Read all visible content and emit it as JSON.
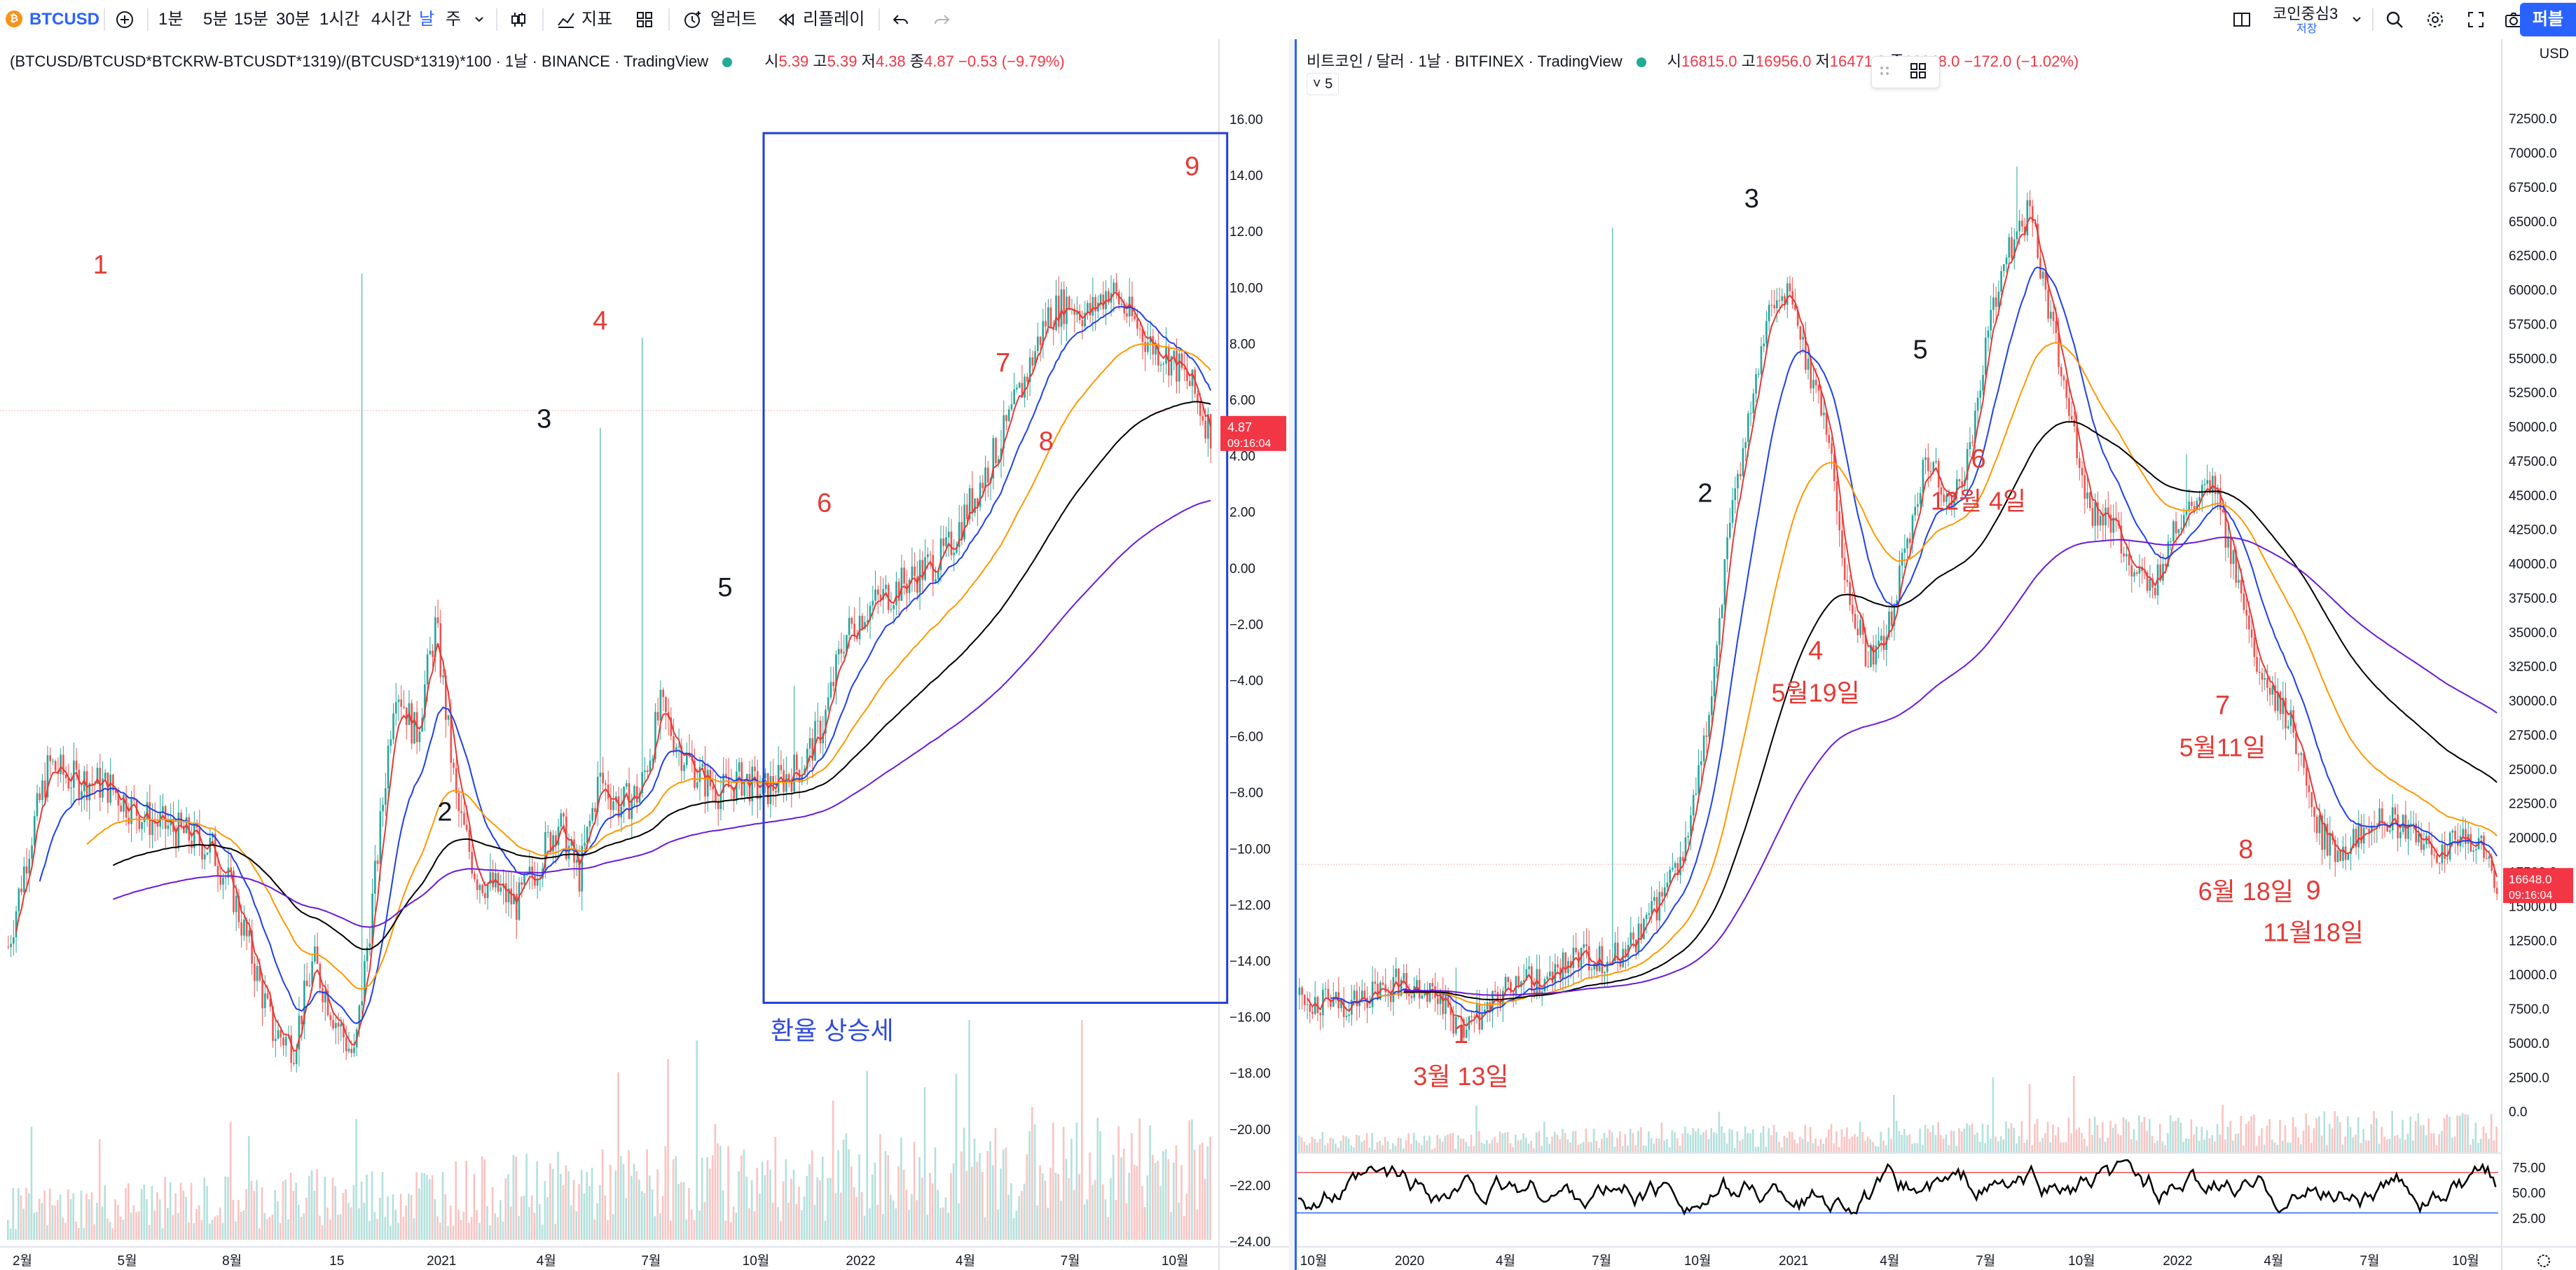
{
  "toolbar": {
    "symbol": "BTCUSD",
    "intervals": [
      "1분",
      "5분",
      "15분",
      "30분",
      "1시간",
      "4시간",
      "날",
      "주"
    ],
    "active_interval": "날",
    "indicators_label": "지표",
    "alerts_label": "얼러트",
    "replay_label": "리플레이",
    "layout_name": "코인중심3",
    "layout_sub": "저장",
    "publish_label": "퍼블",
    "colors": {
      "accent": "#2962ff",
      "btc": "#f7931a"
    }
  },
  "left_chart": {
    "legend_title": "(BTCUSD/BTCUSD*BTCKRW-BTCUSDT*1319)/(BTCUSD*1319)*100 · 1날 · BINANCE · TradingView",
    "ohlc": {
      "o_label": "시",
      "o": "5.39",
      "h_label": "고",
      "h": "5.39",
      "l_label": "저",
      "l": "4.38",
      "c_label": "종",
      "c": "4.87",
      "change": "−0.53 (−9.79%)"
    },
    "price_tag": {
      "value": "4.87",
      "countdown": "09:16:04"
    },
    "annotation_box_label": "환율 상승세"
  },
  "right_chart": {
    "legend_title": "비트코인 / 달러 · 1날 · BITFINEX · TradingView",
    "ohlc": {
      "o_label": "시",
      "o": "16815.0",
      "h_label": "고",
      "h": "16956.0",
      "l_label": "저",
      "l": "16471.0",
      "c_label": "종",
      "c": "16648.0",
      "change": "−172.0 (−1.02%)"
    },
    "collapse_label": "5",
    "currency": "USD",
    "price_tag": {
      "value": "16648.0",
      "countdown": "09:16:04"
    },
    "rsi_ticks": [
      "75.00",
      "50.00",
      "25.00"
    ]
  },
  "chart_data": [
    {
      "type": "candlestick",
      "title": "(BTCUSD/BTCUSD*BTCKRW-BTCUSDT*1319)/(BTCUSD*1319)*100 · 1날 · BINANCE · TradingView",
      "y_ticks": [
        16,
        14,
        12,
        10,
        8,
        6,
        4,
        2,
        0,
        -2,
        -4,
        -6,
        -8,
        -10,
        -12,
        -14,
        -16,
        -18,
        -20,
        -22,
        -24
      ],
      "y_tick_labels": [
        "16.00",
        "14.00",
        "12.00",
        "10.00",
        "8.00",
        "6.00",
        "4.00",
        "2.00",
        "0.00",
        "−2.00",
        "−4.00",
        "−6.00",
        "−8.00",
        "−10.00",
        "−12.00",
        "−14.00",
        "−16.00",
        "−18.00",
        "−20.00",
        "−22.00",
        "−24.00"
      ],
      "ylim": [
        -24,
        17
      ],
      "x_tick_labels": [
        "2월",
        "5월",
        "8월",
        "15",
        "2021",
        "4월",
        "7월",
        "10월",
        "2022",
        "4월",
        "7월",
        "10월"
      ],
      "x": [
        0,
        17,
        35,
        52,
        70,
        87,
        105,
        122,
        140,
        157,
        175,
        192,
        210,
        227,
        245,
        262,
        280,
        297,
        315,
        332,
        350,
        367,
        385,
        402,
        420,
        437,
        455,
        472,
        490,
        507,
        525,
        542,
        560,
        577,
        595,
        612,
        630,
        647,
        665,
        682,
        700,
        717,
        735,
        752,
        770,
        787,
        805,
        822,
        840,
        857,
        875,
        892,
        910,
        927,
        945,
        962,
        980,
        997,
        1015,
        1032
      ],
      "values": [
        -13.5,
        -10.0,
        -7.0,
        -7.5,
        -7.6,
        -7.8,
        -8.5,
        -9.0,
        -9.3,
        -9.6,
        -10.0,
        -11.5,
        -14.0,
        -16.5,
        -17.0,
        -14.0,
        -16.0,
        -17.5,
        -11.0,
        -4.0,
        -6.0,
        -2.0,
        -8.5,
        -11.0,
        -11.5,
        -12.0,
        -10.5,
        -9.0,
        -11.0,
        -7.5,
        -8.5,
        -8.0,
        -5.0,
        -6.5,
        -7.5,
        -8.0,
        -7.5,
        -8.0,
        -7.5,
        -7.0,
        -5.5,
        -2.5,
        -1.5,
        -1.0,
        -0.5,
        0.0,
        0.5,
        2.0,
        3.5,
        5.0,
        7.0,
        9.0,
        9.5,
        9.0,
        10.0,
        9.0,
        8.0,
        7.5,
        6.5,
        4.87
      ],
      "annotations": [
        {
          "label": "1",
          "x": 80,
          "y": 10.5,
          "color": "red"
        },
        {
          "label": "2",
          "x": 375,
          "y": -9.0,
          "color": "black"
        },
        {
          "label": "3",
          "x": 460,
          "y": 5.0,
          "color": "black"
        },
        {
          "label": "4",
          "x": 508,
          "y": 8.5,
          "color": "red"
        },
        {
          "label": "5",
          "x": 615,
          "y": -1.0,
          "color": "black"
        },
        {
          "label": "6",
          "x": 700,
          "y": 2.0,
          "color": "red"
        },
        {
          "label": "7",
          "x": 853,
          "y": 7.0,
          "color": "red"
        },
        {
          "label": "8",
          "x": 890,
          "y": 4.2,
          "color": "red"
        },
        {
          "label": "9",
          "x": 1015,
          "y": 14.0,
          "color": "red"
        }
      ],
      "highlight_box": {
        "label": "환율 상승세",
        "x_range": [
          648,
          1045
        ],
        "y_range": [
          -15.5,
          15.5
        ]
      }
    },
    {
      "type": "candlestick",
      "title": "비트코인 / 달러 · 1날 · BITFINEX · TradingView",
      "y_ticks": [
        72500,
        70000,
        67500,
        65000,
        62500,
        60000,
        57500,
        55000,
        52500,
        50000,
        47500,
        45000,
        42500,
        40000,
        37500,
        35000,
        32500,
        30000,
        27500,
        25000,
        22500,
        20000,
        17500,
        15000,
        12500,
        10000,
        7500,
        5000,
        2500,
        0
      ],
      "y_tick_labels": [
        "72500.0",
        "70000.0",
        "67500.0",
        "65000.0",
        "62500.0",
        "60000.0",
        "57500.0",
        "55000.0",
        "52500.0",
        "50000.0",
        "47500.0",
        "45000.0",
        "42500.0",
        "40000.0",
        "37500.0",
        "35000.0",
        "32500.0",
        "30000.0",
        "27500.0",
        "25000.0",
        "22500.0",
        "20000.0",
        "17500.0",
        "15000.0",
        "12500.0",
        "10000.0",
        "7500.0",
        "5000.0",
        "2500.0",
        "0.0"
      ],
      "ylim": [
        -1500,
        74500
      ],
      "x_tick_labels": [
        "10월",
        "2020",
        "4월",
        "7월",
        "10월",
        "2021",
        "4월",
        "7월",
        "10월",
        "2022",
        "4월",
        "7월",
        "10월"
      ],
      "x": [
        0,
        17,
        35,
        52,
        70,
        87,
        105,
        122,
        140,
        157,
        175,
        192,
        210,
        227,
        245,
        262,
        280,
        297,
        315,
        332,
        350,
        367,
        385,
        402,
        420,
        437,
        455,
        472,
        490,
        507,
        525,
        542,
        560,
        577,
        595,
        612,
        630,
        647,
        665,
        682,
        700,
        717,
        735,
        752,
        770,
        787,
        805,
        822,
        840,
        857,
        875,
        892,
        910,
        927,
        945,
        962,
        980,
        997,
        1015,
        1032
      ],
      "values": [
        8500,
        8000,
        7800,
        8200,
        8800,
        9500,
        9200,
        8500,
        5500,
        7000,
        8500,
        9500,
        9200,
        10500,
        11500,
        11000,
        11500,
        13500,
        16000,
        19000,
        27000,
        40000,
        50000,
        58000,
        60000,
        55000,
        50000,
        38000,
        33000,
        35000,
        42000,
        48000,
        44000,
        48000,
        58000,
        63000,
        66000,
        58000,
        50000,
        44000,
        43000,
        40000,
        38000,
        42000,
        44000,
        46000,
        40000,
        33000,
        30000,
        28000,
        21000,
        19000,
        20000,
        22000,
        21000,
        20000,
        19000,
        19500,
        20000,
        16648
      ],
      "annotations": [
        {
          "label": "1",
          "sublabel": "3월 13일",
          "x": 140,
          "y": 5000
        },
        {
          "label": "2",
          "x": 350,
          "y": 44500
        },
        {
          "label": "3",
          "x": 390,
          "y": 66000
        },
        {
          "label": "4",
          "sublabel": "5월19일",
          "x": 445,
          "y": 33000
        },
        {
          "label": "5",
          "x": 535,
          "y": 55000
        },
        {
          "label": "6",
          "sublabel": "12월 4일",
          "x": 585,
          "y": 47000
        },
        {
          "label": "7",
          "sublabel": "5월11일",
          "x": 795,
          "y": 29000
        },
        {
          "label": "8",
          "sublabel": "6월 18일",
          "x": 815,
          "y": 18500
        },
        {
          "label": "9",
          "sublabel": "11월18일",
          "x": 873,
          "y": 15500
        }
      ],
      "rsi": {
        "levels": [
          70,
          30
        ],
        "range": [
          20,
          85
        ]
      }
    }
  ]
}
